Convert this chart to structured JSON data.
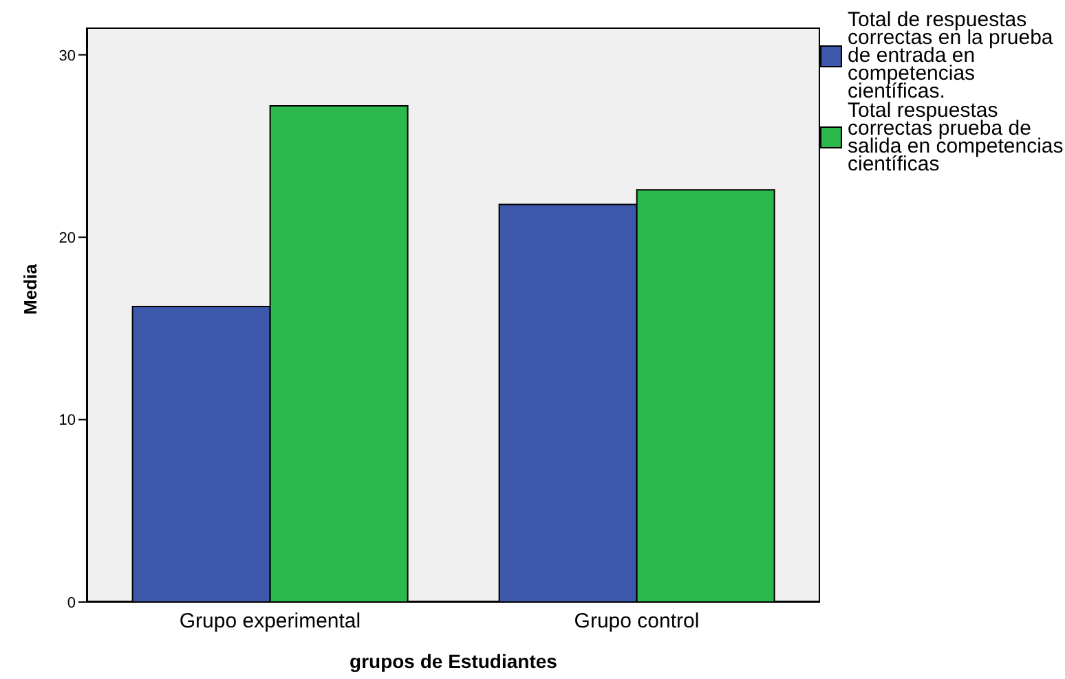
{
  "chart_data": {
    "type": "bar",
    "xlabel": "grupos de Estudiantes",
    "ylabel": "Media",
    "categories": [
      "Grupo experimental",
      "Grupo control"
    ],
    "series": [
      {
        "name": "Total de respuestas correctas en la prueba de entrada en competencias científicas.",
        "color": "#3e58ac",
        "values": [
          16.2,
          21.8
        ]
      },
      {
        "name": "Total respuestas correctas prueba de salida en competencias científicas",
        "color": "#2db84d",
        "values": [
          27.2,
          22.6
        ]
      }
    ],
    "ylim": [
      0,
      31.5
    ],
    "yticks": [
      0,
      10,
      20,
      30
    ],
    "legend": "right"
  }
}
